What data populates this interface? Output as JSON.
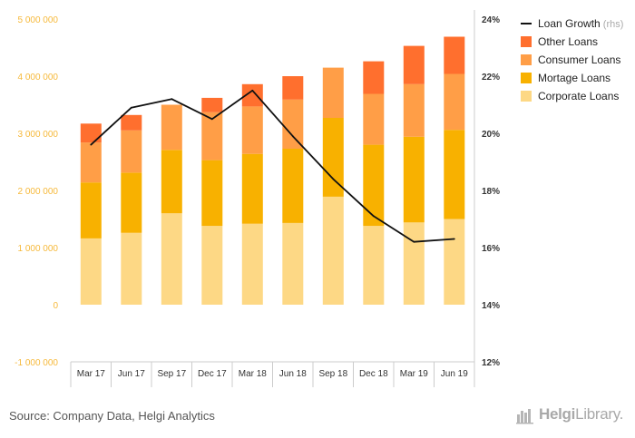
{
  "chart_data": {
    "type": "bar",
    "stacked": true,
    "categories": [
      "Mar 17",
      "Jun 17",
      "Sep 17",
      "Dec 17",
      "Mar 18",
      "Jun 18",
      "Sep 18",
      "Dec 18",
      "Mar 19",
      "Jun 19"
    ],
    "series": [
      {
        "name": "Corporate Loans",
        "color": "#fdd885",
        "values": [
          1160000,
          1260000,
          1600000,
          1380000,
          1420000,
          1430000,
          1890000,
          1380000,
          1440000,
          1500000
        ]
      },
      {
        "name": "Mortage Loans",
        "color": "#f8b100",
        "values": [
          980000,
          1050000,
          1110000,
          1150000,
          1220000,
          1300000,
          1380000,
          1420000,
          1500000,
          1560000
        ]
      },
      {
        "name": "Consumer Loans",
        "color": "#ff9e47",
        "values": [
          700000,
          740000,
          790000,
          840000,
          830000,
          860000,
          880000,
          890000,
          920000,
          980000
        ]
      },
      {
        "name": "Other Loans",
        "color": "#ff6f2e",
        "values": [
          330000,
          270000,
          0,
          250000,
          390000,
          410000,
          0,
          570000,
          670000,
          650000
        ]
      }
    ],
    "line_series": {
      "name": "Loan Growth",
      "name_suffix": "(rhs)",
      "color": "#111111",
      "axis": "right",
      "values": [
        19.6,
        20.9,
        21.2,
        20.5,
        21.5,
        19.9,
        18.4,
        17.1,
        16.2,
        16.3
      ]
    },
    "ylim": [
      -1000000,
      5000000
    ],
    "y_ticks": [
      5000000,
      4000000,
      3000000,
      2000000,
      1000000,
      0,
      -1000000
    ],
    "y_tick_labels": [
      "5 000 000",
      "4 000 000",
      "3 000 000",
      "2 000 000",
      "1 000 000",
      "0",
      "-1 000 000"
    ],
    "y2lim": [
      12,
      24
    ],
    "y2_ticks": [
      24,
      22,
      20,
      18,
      16,
      14,
      12
    ],
    "y2_tick_labels": [
      "24%",
      "22%",
      "20%",
      "18%",
      "16%",
      "14%",
      "12%"
    ],
    "legend_position": "top-right",
    "grid": false
  },
  "source": "Source: Company Data, Helgi Analytics",
  "logo": {
    "part1": "Helgi",
    "part2": "Library."
  },
  "colors": {
    "axis_left": "#f6b93b",
    "text": "#333333",
    "axis_line": "#cccccc"
  }
}
